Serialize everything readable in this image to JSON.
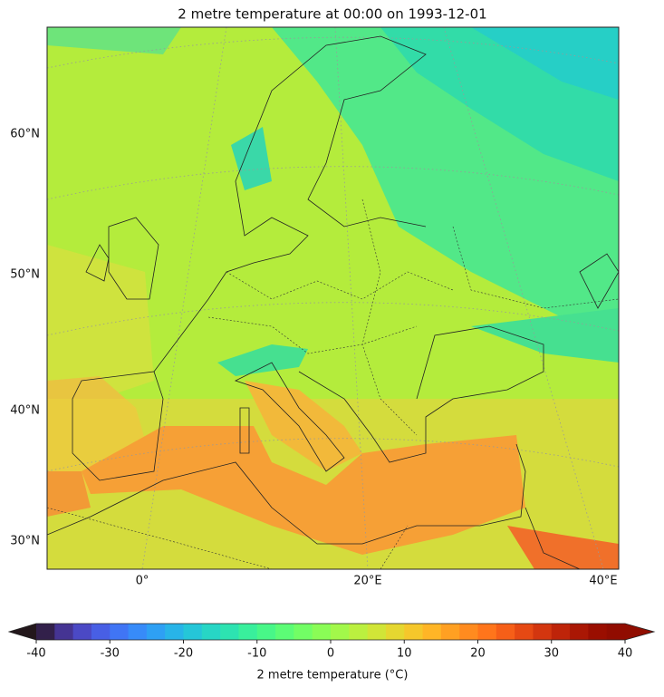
{
  "title": "2 metre temperature at 00:00 on 1993-12-01",
  "map": {
    "lat_labels": [
      "60°N",
      "50°N",
      "40°N",
      "30°N"
    ],
    "lon_labels": [
      "0°",
      "20°E",
      "40°E"
    ]
  },
  "colorbar": {
    "label": "2 metre temperature (°C)",
    "lim": [
      -40,
      40
    ],
    "ticks": [
      -40,
      -30,
      -20,
      -10,
      0,
      10,
      20,
      30,
      40
    ],
    "colormap": "turbo",
    "extend": "both"
  }
}
